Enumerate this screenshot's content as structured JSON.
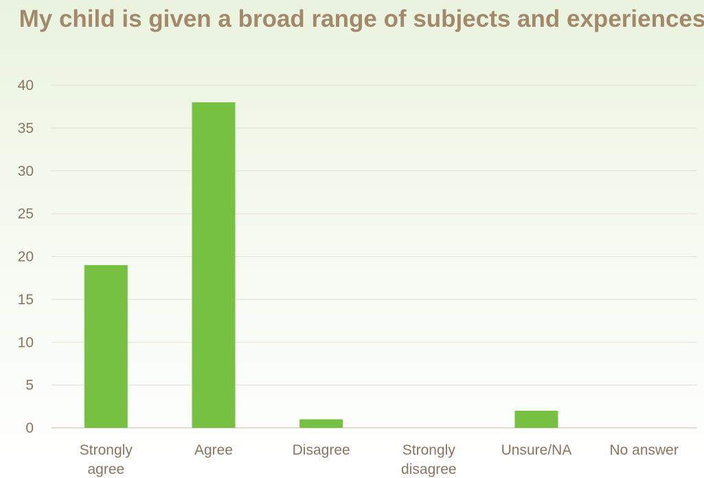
{
  "chart_data": {
    "type": "bar",
    "title": "My child is given a broad range of subjects and experiences",
    "categories": [
      [
        "Strongly",
        "agree"
      ],
      [
        "Agree"
      ],
      [
        "Disagree"
      ],
      [
        "Strongly",
        "disagree"
      ],
      [
        "Unsure/NA"
      ],
      [
        "No answer"
      ]
    ],
    "values": [
      19,
      38,
      1,
      0,
      2,
      0
    ],
    "ylim": [
      0,
      40
    ],
    "yticks": [
      0,
      5,
      10,
      15,
      20,
      25,
      30,
      35,
      40
    ],
    "grid": true,
    "bar_color": "#76c142"
  }
}
